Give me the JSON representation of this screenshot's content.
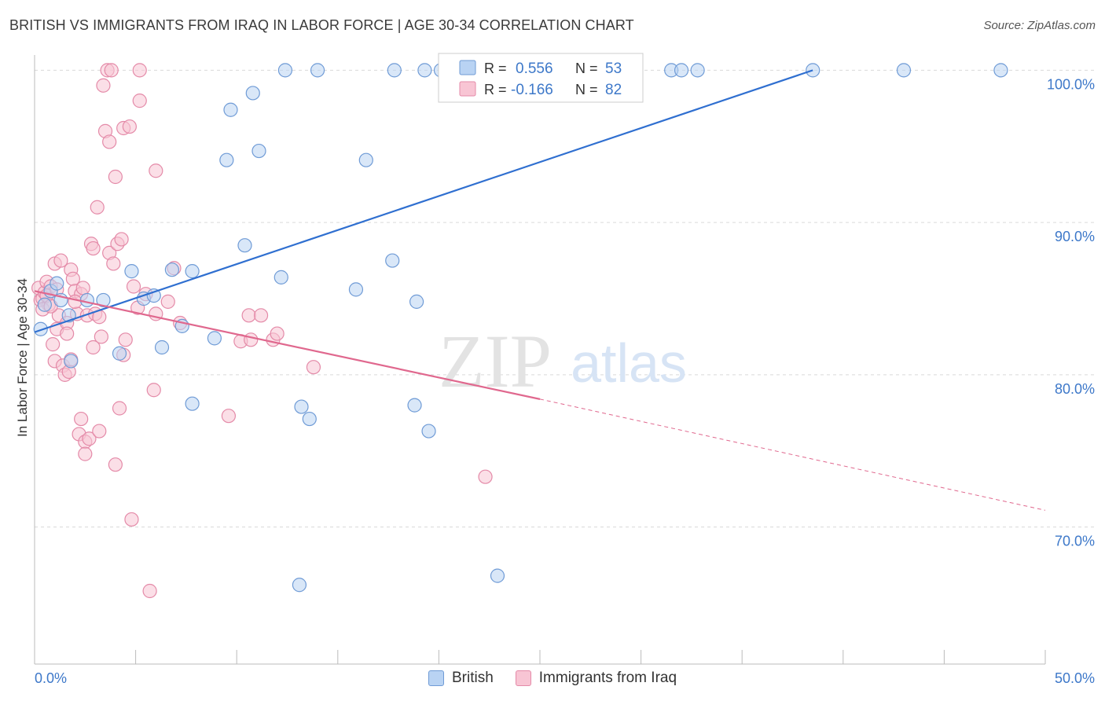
{
  "header": {
    "title": "BRITISH VS IMMIGRANTS FROM IRAQ IN LABOR FORCE | AGE 30-34 CORRELATION CHART",
    "source": "Source: ZipAtlas.com"
  },
  "watermark": {
    "zip": "ZIP",
    "atlas": "atlas"
  },
  "colors": {
    "british_fill": "#b9d3f3",
    "british_stroke": "#6f9bd6",
    "british_line": "#2f6fd0",
    "iraq_fill": "#f8c5d4",
    "iraq_stroke": "#e48aa8",
    "iraq_line": "#e0688e",
    "axis_label": "#3d78c9",
    "grid": "#d9d9d9"
  },
  "chart_data": {
    "type": "scatter",
    "title": "BRITISH VS IMMIGRANTS FROM IRAQ IN LABOR FORCE | AGE 30-34 CORRELATION CHART",
    "xlabel": "",
    "ylabel": "In Labor Force | Age 30-34",
    "xlim": [
      0,
      50
    ],
    "ylim": [
      61,
      101
    ],
    "x_tick_labels": [
      "0.0%",
      "50.0%"
    ],
    "y_ticks": [
      70,
      80,
      90,
      100
    ],
    "y_tick_labels": [
      "70.0%",
      "80.0%",
      "90.0%",
      "100.0%"
    ],
    "grid": true,
    "legend_position": "top-center",
    "stats": [
      {
        "r_label": "R =",
        "r_value": "0.556",
        "n_label": "N =",
        "n_value": "53"
      },
      {
        "r_label": "R =",
        "r_value": "-0.166",
        "n_label": "N =",
        "n_value": "82"
      }
    ],
    "series": [
      {
        "name": "British",
        "trend": {
          "x0": 0,
          "y0": 82.8,
          "x1": 38.5,
          "y1": 100.0
        },
        "points": [
          [
            0.3,
            83.0
          ],
          [
            0.5,
            84.6
          ],
          [
            0.8,
            85.5
          ],
          [
            1.1,
            86.0
          ],
          [
            1.3,
            84.9
          ],
          [
            1.7,
            83.9
          ],
          [
            1.8,
            80.9
          ],
          [
            2.6,
            84.9
          ],
          [
            3.4,
            84.9
          ],
          [
            4.2,
            81.4
          ],
          [
            4.8,
            86.8
          ],
          [
            5.4,
            85.0
          ],
          [
            5.9,
            85.2
          ],
          [
            6.3,
            81.8
          ],
          [
            6.8,
            86.9
          ],
          [
            7.3,
            83.2
          ],
          [
            7.8,
            86.8
          ],
          [
            7.8,
            78.1
          ],
          [
            8.9,
            82.4
          ],
          [
            9.5,
            94.1
          ],
          [
            9.7,
            97.4
          ],
          [
            10.4,
            88.5
          ],
          [
            10.8,
            98.5
          ],
          [
            11.1,
            94.7
          ],
          [
            12.2,
            86.4
          ],
          [
            12.4,
            100.0
          ],
          [
            13.1,
            66.2
          ],
          [
            13.2,
            77.9
          ],
          [
            13.6,
            77.1
          ],
          [
            14.0,
            100.0
          ],
          [
            15.9,
            85.6
          ],
          [
            16.4,
            94.1
          ],
          [
            17.7,
            87.5
          ],
          [
            17.8,
            100.0
          ],
          [
            18.8,
            78.0
          ],
          [
            18.9,
            84.8
          ],
          [
            19.3,
            100.0
          ],
          [
            19.5,
            76.3
          ],
          [
            20.1,
            100.0
          ],
          [
            21.6,
            100.0
          ],
          [
            22.3,
            100.0
          ],
          [
            22.9,
            66.8
          ],
          [
            24.0,
            100.0
          ],
          [
            25.0,
            100.0
          ],
          [
            27.7,
            100.0
          ],
          [
            27.9,
            100.0
          ],
          [
            29.3,
            100.0
          ],
          [
            31.5,
            100.0
          ],
          [
            32.0,
            100.0
          ],
          [
            32.8,
            100.0
          ],
          [
            38.5,
            100.0
          ],
          [
            43.0,
            100.0
          ],
          [
            47.8,
            100.0
          ]
        ]
      },
      {
        "name": "Immigrants from Iraq",
        "trend": {
          "x0": 0,
          "y0": 85.5,
          "x1": 25.0,
          "y1": 78.4,
          "dash_x1": 50,
          "dash_y1": 71.1
        },
        "points": [
          [
            0.2,
            85.7
          ],
          [
            0.3,
            84.9
          ],
          [
            0.4,
            85.0
          ],
          [
            0.5,
            85.4
          ],
          [
            0.6,
            86.1
          ],
          [
            0.7,
            84.6
          ],
          [
            0.8,
            85.8
          ],
          [
            0.9,
            82.0
          ],
          [
            1.0,
            87.3
          ],
          [
            1.1,
            83.0
          ],
          [
            1.0,
            80.9
          ],
          [
            1.2,
            83.9
          ],
          [
            1.3,
            87.5
          ],
          [
            1.4,
            80.6
          ],
          [
            1.5,
            80.0
          ],
          [
            1.6,
            83.4
          ],
          [
            1.7,
            80.2
          ],
          [
            1.8,
            86.9
          ],
          [
            1.8,
            81.0
          ],
          [
            1.9,
            86.3
          ],
          [
            2.0,
            85.5
          ],
          [
            2.1,
            84.0
          ],
          [
            2.2,
            76.1
          ],
          [
            2.3,
            85.3
          ],
          [
            2.3,
            77.1
          ],
          [
            2.4,
            85.7
          ],
          [
            2.5,
            75.6
          ],
          [
            2.5,
            74.8
          ],
          [
            2.6,
            83.9
          ],
          [
            2.7,
            75.8
          ],
          [
            2.8,
            88.6
          ],
          [
            2.9,
            88.3
          ],
          [
            2.9,
            81.8
          ],
          [
            3.0,
            84.0
          ],
          [
            3.1,
            91.0
          ],
          [
            3.2,
            76.3
          ],
          [
            3.3,
            82.5
          ],
          [
            3.4,
            99.0
          ],
          [
            3.5,
            96.0
          ],
          [
            3.6,
            100.0
          ],
          [
            3.7,
            88.0
          ],
          [
            3.7,
            95.3
          ],
          [
            3.8,
            100.0
          ],
          [
            3.9,
            87.3
          ],
          [
            4.0,
            93.0
          ],
          [
            4.1,
            88.6
          ],
          [
            4.0,
            74.1
          ],
          [
            4.2,
            77.8
          ],
          [
            4.3,
            88.9
          ],
          [
            4.4,
            96.2
          ],
          [
            4.4,
            81.3
          ],
          [
            4.5,
            82.3
          ],
          [
            4.7,
            96.3
          ],
          [
            4.8,
            70.5
          ],
          [
            4.9,
            85.8
          ],
          [
            5.1,
            84.4
          ],
          [
            5.2,
            98.0
          ],
          [
            5.2,
            100.0
          ],
          [
            5.5,
            85.3
          ],
          [
            5.7,
            65.8
          ],
          [
            5.9,
            79.0
          ],
          [
            6.0,
            93.4
          ],
          [
            6.6,
            84.8
          ],
          [
            6.9,
            87.0
          ],
          [
            7.2,
            83.4
          ],
          [
            9.6,
            77.3
          ],
          [
            10.2,
            82.2
          ],
          [
            10.6,
            83.9
          ],
          [
            10.7,
            82.3
          ],
          [
            11.2,
            83.9
          ],
          [
            11.8,
            82.3
          ],
          [
            12.0,
            82.7
          ],
          [
            13.8,
            80.5
          ],
          [
            22.3,
            73.3
          ],
          [
            0.4,
            84.3
          ],
          [
            0.6,
            85.2
          ],
          [
            1.6,
            82.7
          ],
          [
            2.0,
            84.8
          ],
          [
            3.2,
            83.8
          ],
          [
            0.8,
            84.5
          ],
          [
            1.1,
            85.6
          ],
          [
            6.0,
            84.0
          ]
        ]
      }
    ]
  },
  "legend": {
    "british_label": "British",
    "iraq_label": "Immigrants from Iraq"
  }
}
